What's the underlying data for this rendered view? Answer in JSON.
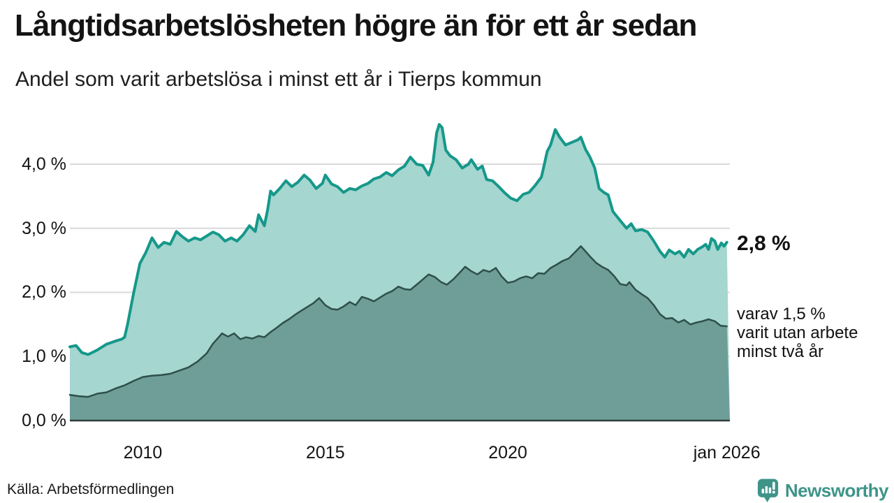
{
  "header": {
    "title": "Långtidsarbetslösheten högre än för ett år sedan",
    "subtitle": "Andel som varit arbetslösa i minst ett år i Tierps kommun"
  },
  "annotations": {
    "latest_value": "2,8 %",
    "note_lines": [
      "varav 1,5 %",
      "varit utan arbete",
      "minst två år"
    ]
  },
  "footer": {
    "source": "Källa: Arbetsförmedlingen",
    "brand": "Newsworthy"
  },
  "colors": {
    "line_1yr": "#15988a",
    "fill_1yr": "#a5d6cf",
    "line_2yr": "#2e4f4a",
    "fill_2yr": "#6f9e98",
    "gridline": "#d9d9d9",
    "axis": "#2e3d3a",
    "brand_teal": "#3e9489",
    "text": "#141414"
  },
  "chart_data": {
    "type": "area",
    "title": "Långtidsarbetslösheten högre än för ett år sedan",
    "subtitle": "Andel som varit arbetslösa i minst ett år i Tierps kommun",
    "unit": "%",
    "grid": true,
    "x_axis": {
      "range": [
        2008.0,
        2026.083
      ],
      "ticks": [
        {
          "x": 2010,
          "label": "2010"
        },
        {
          "x": 2015,
          "label": "2015"
        },
        {
          "x": 2020,
          "label": "2020"
        },
        {
          "x": 2026.0,
          "label": "jan 2026"
        }
      ]
    },
    "y_axis": {
      "range": [
        0,
        4.73
      ],
      "ticks": [
        {
          "v": 0,
          "label": "0,0 %"
        },
        {
          "v": 1,
          "label": "1,0 %"
        },
        {
          "v": 2,
          "label": "2,0 %"
        },
        {
          "v": 3,
          "label": "3,0 %"
        },
        {
          "v": 4,
          "label": "4,0 %"
        }
      ]
    },
    "series": [
      {
        "name": "Arbetslösa i minst ett år",
        "end_label": "2,8 %",
        "end_value": 2.8,
        "points": [
          [
            2008.0,
            1.15
          ],
          [
            2008.17,
            1.17
          ],
          [
            2008.33,
            1.06
          ],
          [
            2008.5,
            1.03
          ],
          [
            2008.75,
            1.1
          ],
          [
            2009.0,
            1.19
          ],
          [
            2009.25,
            1.24
          ],
          [
            2009.42,
            1.27
          ],
          [
            2009.5,
            1.3
          ],
          [
            2009.58,
            1.5
          ],
          [
            2009.75,
            2.0
          ],
          [
            2009.92,
            2.45
          ],
          [
            2010.08,
            2.62
          ],
          [
            2010.25,
            2.85
          ],
          [
            2010.42,
            2.7
          ],
          [
            2010.58,
            2.78
          ],
          [
            2010.75,
            2.75
          ],
          [
            2010.92,
            2.95
          ],
          [
            2011.08,
            2.87
          ],
          [
            2011.25,
            2.8
          ],
          [
            2011.42,
            2.85
          ],
          [
            2011.58,
            2.82
          ],
          [
            2011.75,
            2.88
          ],
          [
            2011.92,
            2.94
          ],
          [
            2012.08,
            2.9
          ],
          [
            2012.25,
            2.8
          ],
          [
            2012.42,
            2.85
          ],
          [
            2012.58,
            2.8
          ],
          [
            2012.75,
            2.9
          ],
          [
            2012.92,
            3.04
          ],
          [
            2013.08,
            2.95
          ],
          [
            2013.17,
            3.21
          ],
          [
            2013.33,
            3.04
          ],
          [
            2013.42,
            3.29
          ],
          [
            2013.5,
            3.58
          ],
          [
            2013.58,
            3.52
          ],
          [
            2013.75,
            3.62
          ],
          [
            2013.92,
            3.74
          ],
          [
            2014.08,
            3.65
          ],
          [
            2014.25,
            3.72
          ],
          [
            2014.42,
            3.83
          ],
          [
            2014.58,
            3.75
          ],
          [
            2014.75,
            3.62
          ],
          [
            2014.92,
            3.7
          ],
          [
            2015.0,
            3.83
          ],
          [
            2015.17,
            3.69
          ],
          [
            2015.33,
            3.65
          ],
          [
            2015.5,
            3.56
          ],
          [
            2015.67,
            3.62
          ],
          [
            2015.83,
            3.6
          ],
          [
            2016.0,
            3.66
          ],
          [
            2016.17,
            3.7
          ],
          [
            2016.33,
            3.77
          ],
          [
            2016.5,
            3.8
          ],
          [
            2016.67,
            3.87
          ],
          [
            2016.83,
            3.82
          ],
          [
            2017.0,
            3.91
          ],
          [
            2017.17,
            3.97
          ],
          [
            2017.33,
            4.11
          ],
          [
            2017.5,
            4.0
          ],
          [
            2017.67,
            3.98
          ],
          [
            2017.83,
            3.83
          ],
          [
            2017.95,
            4.03
          ],
          [
            2018.05,
            4.49
          ],
          [
            2018.12,
            4.62
          ],
          [
            2018.2,
            4.57
          ],
          [
            2018.3,
            4.22
          ],
          [
            2018.42,
            4.13
          ],
          [
            2018.58,
            4.07
          ],
          [
            2018.75,
            3.94
          ],
          [
            2018.92,
            4.0
          ],
          [
            2019.0,
            4.07
          ],
          [
            2019.17,
            3.92
          ],
          [
            2019.3,
            3.97
          ],
          [
            2019.42,
            3.76
          ],
          [
            2019.58,
            3.74
          ],
          [
            2019.75,
            3.65
          ],
          [
            2019.92,
            3.55
          ],
          [
            2020.08,
            3.47
          ],
          [
            2020.25,
            3.43
          ],
          [
            2020.42,
            3.53
          ],
          [
            2020.58,
            3.56
          ],
          [
            2020.75,
            3.67
          ],
          [
            2020.92,
            3.8
          ],
          [
            2021.0,
            4.0
          ],
          [
            2021.08,
            4.2
          ],
          [
            2021.17,
            4.3
          ],
          [
            2021.3,
            4.54
          ],
          [
            2021.42,
            4.42
          ],
          [
            2021.58,
            4.3
          ],
          [
            2021.75,
            4.34
          ],
          [
            2021.92,
            4.38
          ],
          [
            2022.0,
            4.42
          ],
          [
            2022.13,
            4.23
          ],
          [
            2022.25,
            4.11
          ],
          [
            2022.38,
            3.94
          ],
          [
            2022.5,
            3.62
          ],
          [
            2022.63,
            3.56
          ],
          [
            2022.75,
            3.52
          ],
          [
            2022.88,
            3.26
          ],
          [
            2023.05,
            3.14
          ],
          [
            2023.25,
            3.0
          ],
          [
            2023.38,
            3.07
          ],
          [
            2023.5,
            2.96
          ],
          [
            2023.67,
            2.98
          ],
          [
            2023.83,
            2.94
          ],
          [
            2024.0,
            2.8
          ],
          [
            2024.17,
            2.64
          ],
          [
            2024.3,
            2.55
          ],
          [
            2024.42,
            2.66
          ],
          [
            2024.58,
            2.6
          ],
          [
            2024.7,
            2.64
          ],
          [
            2024.83,
            2.55
          ],
          [
            2024.95,
            2.67
          ],
          [
            2025.08,
            2.6
          ],
          [
            2025.2,
            2.67
          ],
          [
            2025.33,
            2.71
          ],
          [
            2025.42,
            2.75
          ],
          [
            2025.5,
            2.67
          ],
          [
            2025.58,
            2.84
          ],
          [
            2025.67,
            2.8
          ],
          [
            2025.75,
            2.67
          ],
          [
            2025.85,
            2.77
          ],
          [
            2025.92,
            2.72
          ],
          [
            2026.0,
            2.78
          ]
        ]
      },
      {
        "name": "varav utan arbete minst två år",
        "end_label": "varav 1,5 % varit utan arbete minst två år",
        "end_value": 1.5,
        "points": [
          [
            2008.0,
            0.4
          ],
          [
            2008.25,
            0.38
          ],
          [
            2008.5,
            0.37
          ],
          [
            2008.75,
            0.42
          ],
          [
            2009.0,
            0.44
          ],
          [
            2009.25,
            0.5
          ],
          [
            2009.5,
            0.55
          ],
          [
            2009.75,
            0.62
          ],
          [
            2010.0,
            0.68
          ],
          [
            2010.25,
            0.7
          ],
          [
            2010.5,
            0.71
          ],
          [
            2010.75,
            0.73
          ],
          [
            2011.0,
            0.78
          ],
          [
            2011.25,
            0.83
          ],
          [
            2011.5,
            0.92
          ],
          [
            2011.75,
            1.05
          ],
          [
            2011.92,
            1.2
          ],
          [
            2012.08,
            1.3
          ],
          [
            2012.17,
            1.36
          ],
          [
            2012.33,
            1.31
          ],
          [
            2012.5,
            1.36
          ],
          [
            2012.67,
            1.27
          ],
          [
            2012.83,
            1.3
          ],
          [
            2013.0,
            1.28
          ],
          [
            2013.17,
            1.32
          ],
          [
            2013.33,
            1.3
          ],
          [
            2013.5,
            1.38
          ],
          [
            2013.67,
            1.45
          ],
          [
            2013.83,
            1.52
          ],
          [
            2014.0,
            1.58
          ],
          [
            2014.17,
            1.65
          ],
          [
            2014.33,
            1.71
          ],
          [
            2014.5,
            1.77
          ],
          [
            2014.67,
            1.83
          ],
          [
            2014.83,
            1.91
          ],
          [
            2015.0,
            1.8
          ],
          [
            2015.17,
            1.74
          ],
          [
            2015.33,
            1.73
          ],
          [
            2015.5,
            1.78
          ],
          [
            2015.67,
            1.85
          ],
          [
            2015.83,
            1.8
          ],
          [
            2016.0,
            1.93
          ],
          [
            2016.17,
            1.9
          ],
          [
            2016.33,
            1.86
          ],
          [
            2016.5,
            1.92
          ],
          [
            2016.67,
            1.98
          ],
          [
            2016.83,
            2.02
          ],
          [
            2017.0,
            2.09
          ],
          [
            2017.17,
            2.05
          ],
          [
            2017.33,
            2.04
          ],
          [
            2017.5,
            2.12
          ],
          [
            2017.67,
            2.2
          ],
          [
            2017.83,
            2.28
          ],
          [
            2018.0,
            2.24
          ],
          [
            2018.17,
            2.16
          ],
          [
            2018.33,
            2.12
          ],
          [
            2018.5,
            2.2
          ],
          [
            2018.67,
            2.3
          ],
          [
            2018.83,
            2.4
          ],
          [
            2019.0,
            2.33
          ],
          [
            2019.17,
            2.28
          ],
          [
            2019.33,
            2.35
          ],
          [
            2019.5,
            2.32
          ],
          [
            2019.67,
            2.38
          ],
          [
            2019.83,
            2.25
          ],
          [
            2020.0,
            2.15
          ],
          [
            2020.17,
            2.17
          ],
          [
            2020.33,
            2.22
          ],
          [
            2020.5,
            2.25
          ],
          [
            2020.67,
            2.22
          ],
          [
            2020.83,
            2.3
          ],
          [
            2021.0,
            2.29
          ],
          [
            2021.17,
            2.38
          ],
          [
            2021.33,
            2.43
          ],
          [
            2021.5,
            2.49
          ],
          [
            2021.67,
            2.53
          ],
          [
            2021.83,
            2.62
          ],
          [
            2022.0,
            2.72
          ],
          [
            2022.13,
            2.64
          ],
          [
            2022.25,
            2.56
          ],
          [
            2022.42,
            2.46
          ],
          [
            2022.58,
            2.4
          ],
          [
            2022.75,
            2.35
          ],
          [
            2022.92,
            2.25
          ],
          [
            2023.08,
            2.13
          ],
          [
            2023.25,
            2.11
          ],
          [
            2023.33,
            2.16
          ],
          [
            2023.5,
            2.04
          ],
          [
            2023.67,
            1.97
          ],
          [
            2023.83,
            1.91
          ],
          [
            2024.0,
            1.8
          ],
          [
            2024.17,
            1.66
          ],
          [
            2024.33,
            1.59
          ],
          [
            2024.5,
            1.6
          ],
          [
            2024.67,
            1.53
          ],
          [
            2024.83,
            1.57
          ],
          [
            2025.0,
            1.5
          ],
          [
            2025.17,
            1.53
          ],
          [
            2025.33,
            1.55
          ],
          [
            2025.5,
            1.58
          ],
          [
            2025.67,
            1.55
          ],
          [
            2025.83,
            1.48
          ],
          [
            2026.0,
            1.47
          ]
        ]
      }
    ]
  }
}
